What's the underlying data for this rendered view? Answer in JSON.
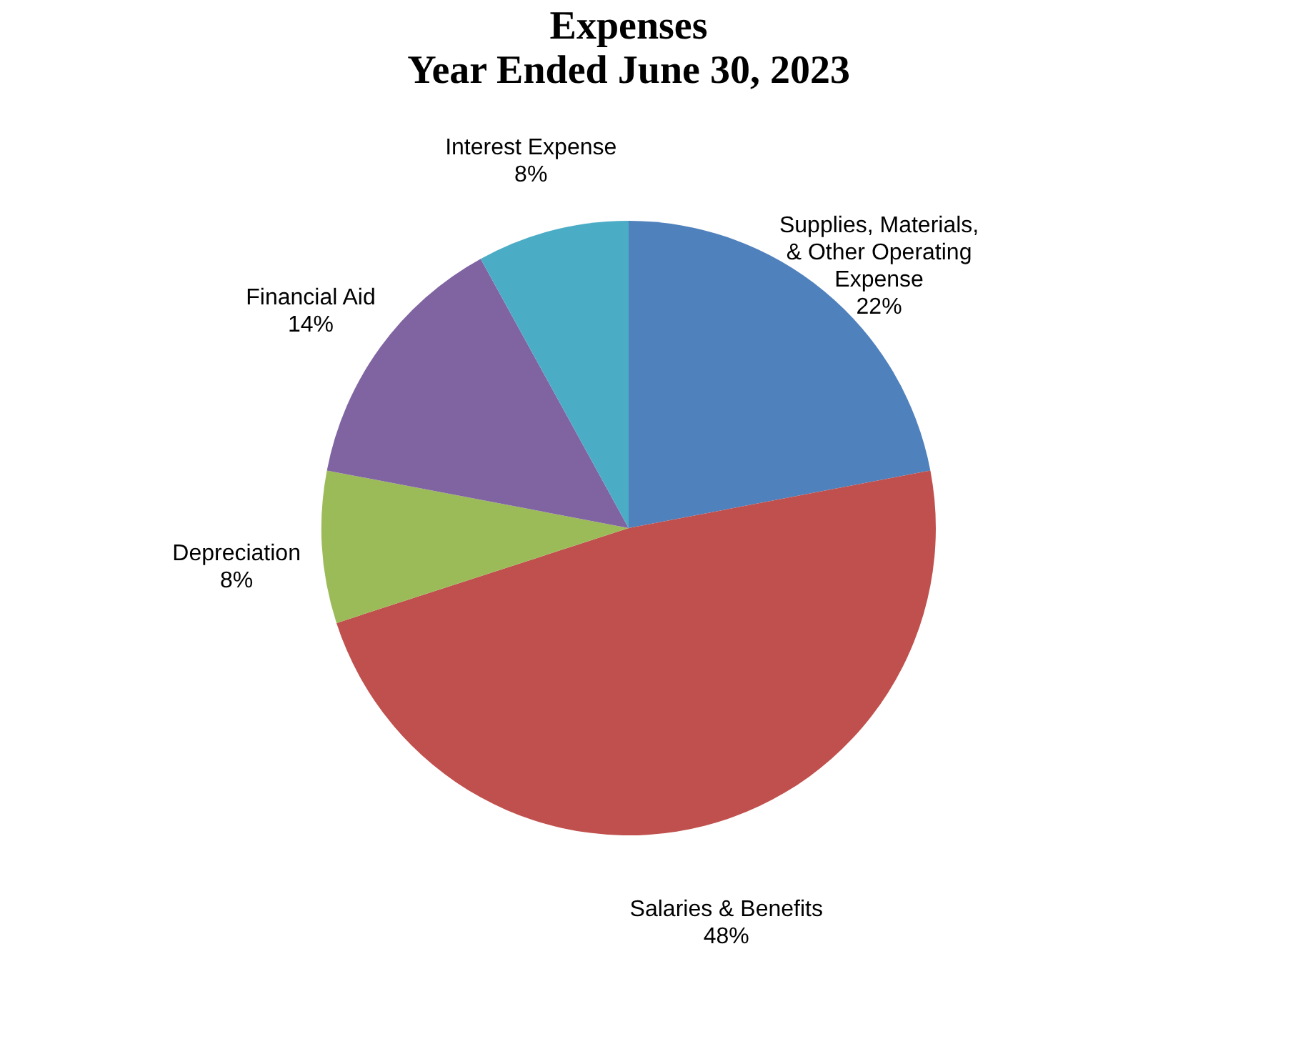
{
  "chart_data": {
    "type": "pie",
    "title": "Expenses",
    "subtitle": "Year Ended June 30, 2023",
    "categories": [
      "Supplies, Materials, & Other Operating Expense",
      "Salaries & Benefits",
      "Depreciation",
      "Financial Aid",
      "Interest Expense"
    ],
    "values": [
      22,
      48,
      8,
      14,
      8
    ],
    "colors": [
      "#4f81bd",
      "#c0504d",
      "#9bbb59",
      "#8064a2",
      "#4bacc6"
    ],
    "value_labels": [
      "22%",
      "48%",
      "8%",
      "14%",
      "8%"
    ],
    "legend": false
  }
}
